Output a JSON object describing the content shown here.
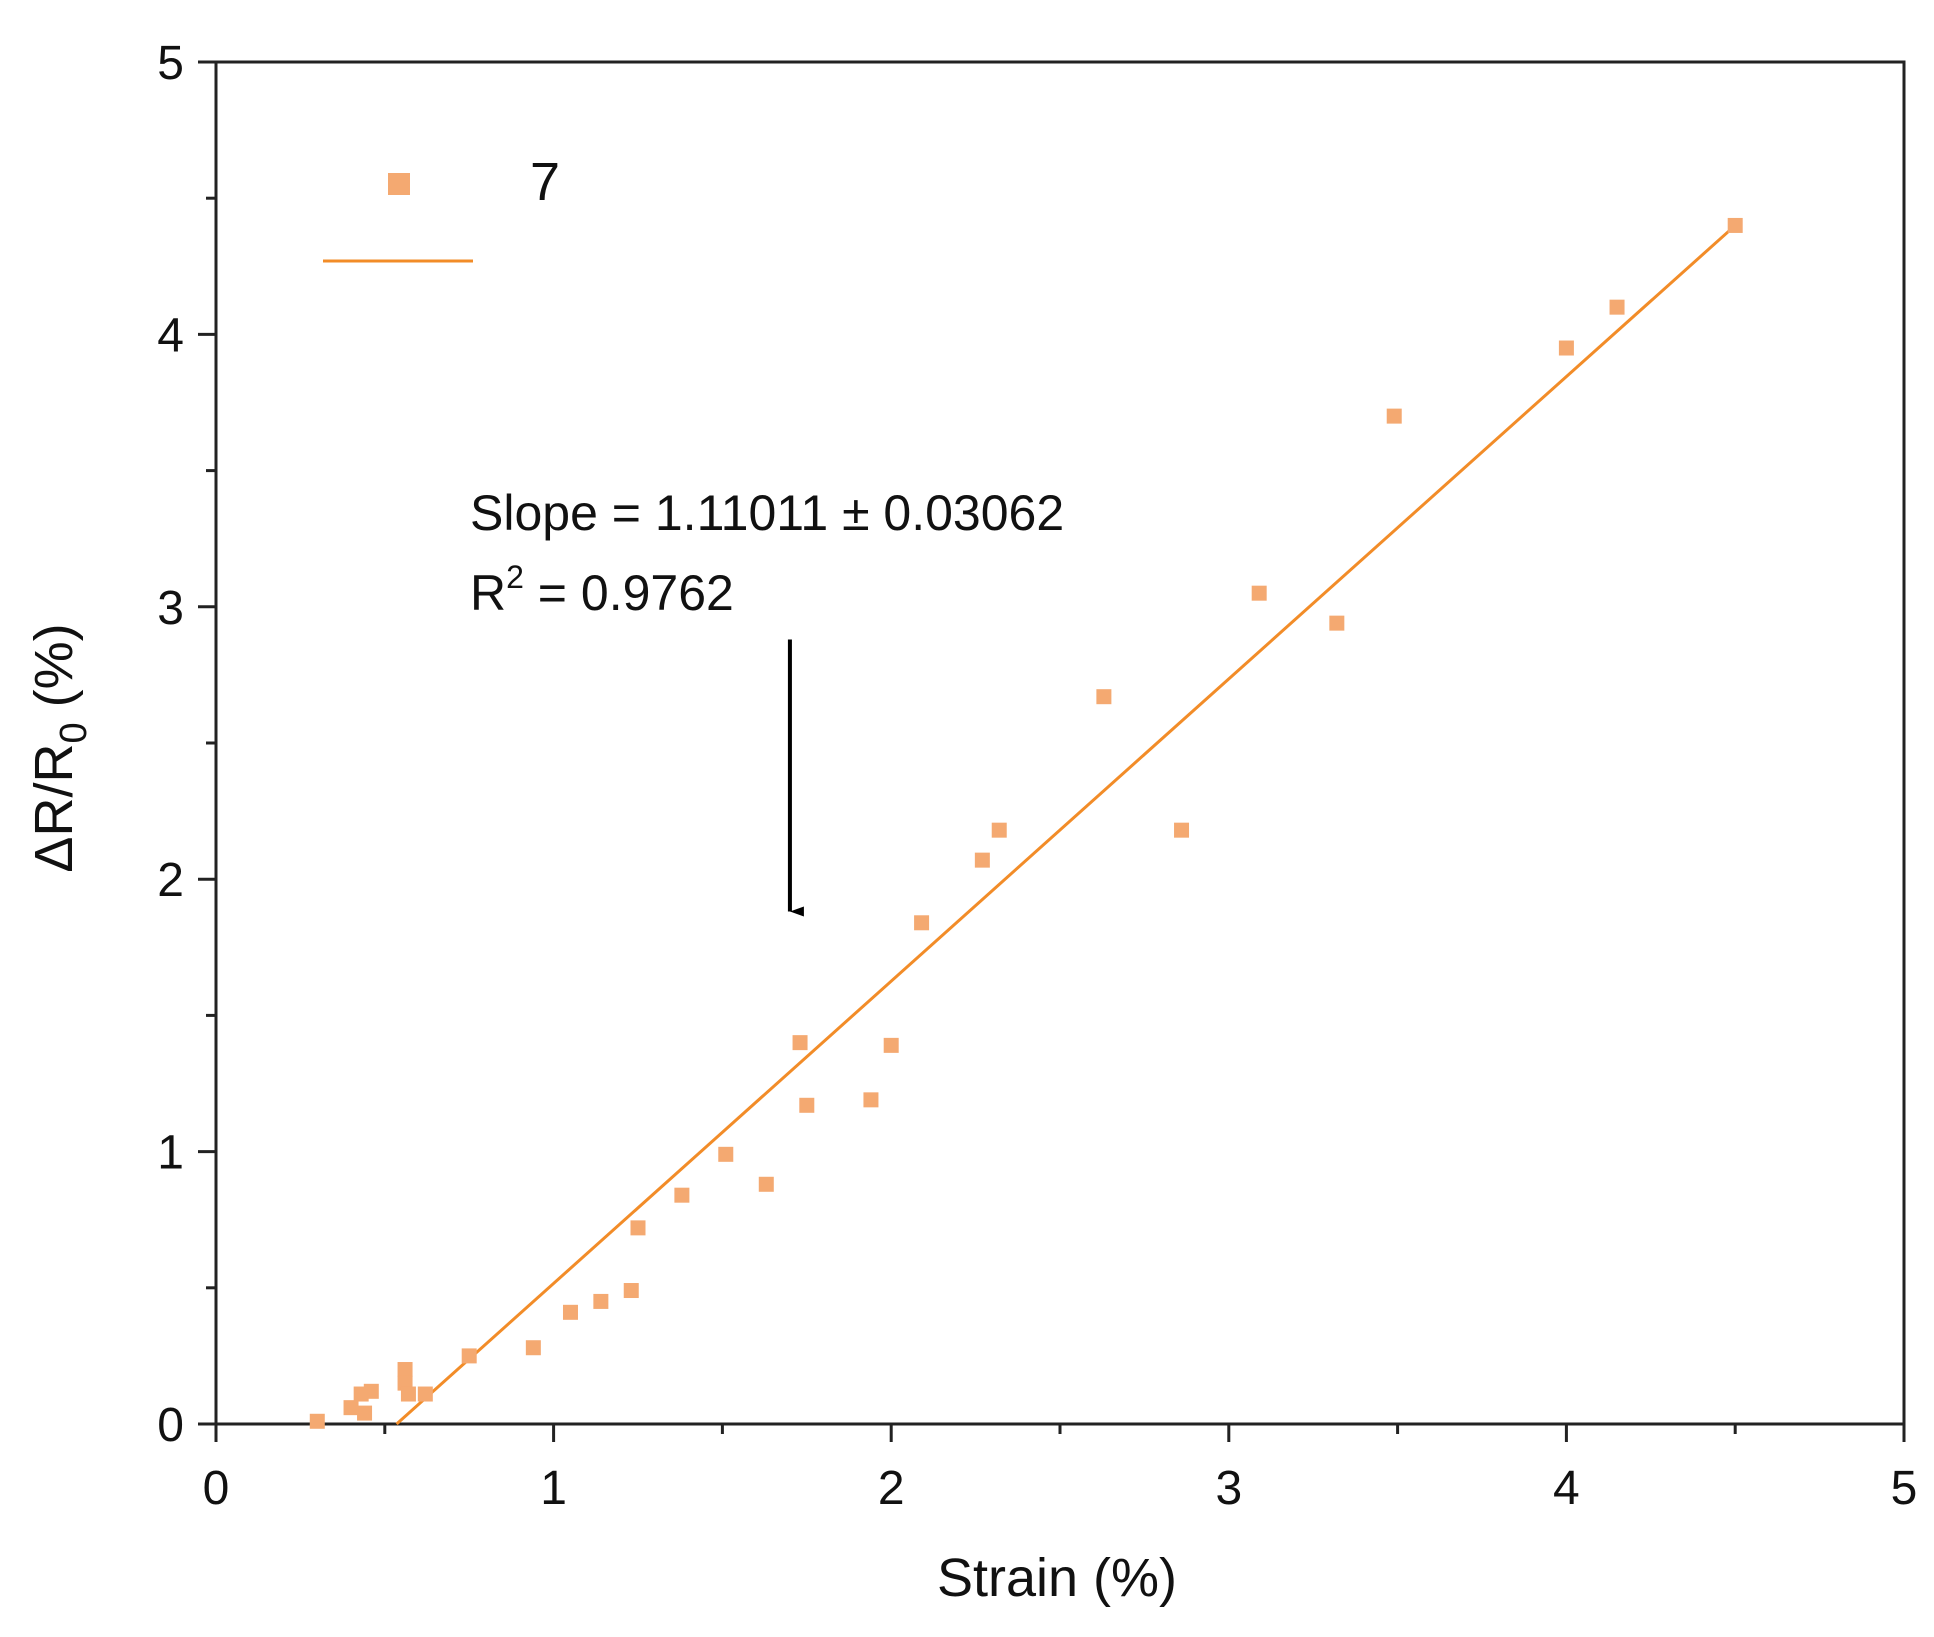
{
  "chart_data": {
    "type": "scatter",
    "xlabel": "Strain (%)",
    "ylabel": "ΔR/R0 (%)",
    "ylabel_parts": {
      "main": "ΔR/R",
      "sub": "0",
      "tail": " (%)"
    },
    "xlim": [
      0,
      5
    ],
    "ylim": [
      0,
      5
    ],
    "xticks": [
      0,
      1,
      2,
      3,
      4,
      5
    ],
    "yticks": [
      0,
      1,
      2,
      3,
      4,
      5
    ],
    "grid": false,
    "legend": {
      "placement": "top-left",
      "entries": [
        {
          "label": "7",
          "marker": "square"
        },
        {
          "label": "",
          "marker": "line"
        }
      ]
    },
    "marker_color": "#F4A971",
    "line_color": "#F28C28",
    "annotation": {
      "slope_text": "Slope = 1.11011 ± 0.03062",
      "r2_prefix": "R",
      "r2_sup": "2",
      "r2_value": " = 0.9762"
    },
    "arrow": {
      "from": [
        1.7,
        2.88
      ],
      "to": [
        1.7,
        1.83
      ]
    },
    "series": [
      {
        "name": "7",
        "kind": "scatter",
        "points": [
          [
            0.3,
            0.01
          ],
          [
            0.4,
            0.06
          ],
          [
            0.43,
            0.11
          ],
          [
            0.44,
            0.04
          ],
          [
            0.46,
            0.12
          ],
          [
            0.56,
            0.2
          ],
          [
            0.56,
            0.15
          ],
          [
            0.57,
            0.11
          ],
          [
            0.62,
            0.11
          ],
          [
            0.75,
            0.25
          ],
          [
            0.94,
            0.28
          ],
          [
            1.05,
            0.41
          ],
          [
            1.14,
            0.45
          ],
          [
            1.23,
            0.49
          ],
          [
            1.25,
            0.72
          ],
          [
            1.38,
            0.84
          ],
          [
            1.51,
            0.99
          ],
          [
            1.63,
            0.88
          ],
          [
            1.73,
            1.4
          ],
          [
            1.75,
            1.17
          ],
          [
            1.94,
            1.19
          ],
          [
            2.0,
            1.39
          ],
          [
            2.09,
            1.84
          ],
          [
            2.27,
            2.07
          ],
          [
            2.32,
            2.18
          ],
          [
            2.63,
            2.67
          ],
          [
            2.86,
            2.18
          ],
          [
            3.09,
            3.05
          ],
          [
            3.32,
            2.94
          ],
          [
            3.49,
            3.7
          ],
          [
            4.0,
            3.95
          ],
          [
            4.15,
            4.1
          ],
          [
            4.5,
            4.4
          ]
        ]
      },
      {
        "name": "",
        "kind": "line",
        "points": [
          [
            0.535,
            0.0
          ],
          [
            4.5,
            4.4
          ]
        ]
      }
    ]
  }
}
